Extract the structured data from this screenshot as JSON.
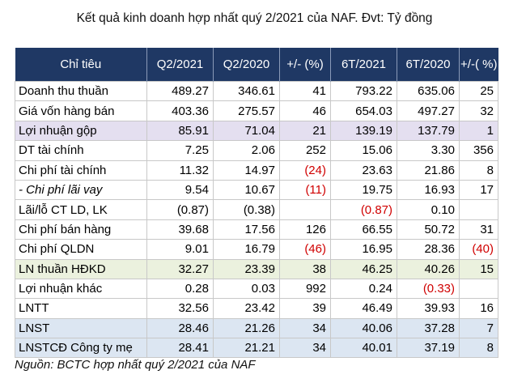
{
  "title": "Kết quả kinh doanh hợp nhất quý 2/2021 của NAF. Đvt: Tỷ đồng",
  "headers": [
    "Chỉ tiêu",
    "Q2/2021",
    "Q2/2020",
    "+/- (%)",
    "6T/2021",
    "6T/2020",
    "+/-( %)"
  ],
  "rows": [
    {
      "name": "Doanh thu thuần",
      "q2_2021": "489.27",
      "q2_2020": "346.61",
      "chg_q": "41",
      "h1_2021": "793.22",
      "h1_2020": "635.06",
      "chg_h": "25"
    },
    {
      "name": "Giá vốn hàng bán",
      "q2_2021": "403.36",
      "q2_2020": "275.57",
      "chg_q": "46",
      "h1_2021": "654.03",
      "h1_2020": "497.27",
      "chg_h": "32"
    },
    {
      "name": "Lợi nhuận gộp",
      "q2_2021": "85.91",
      "q2_2020": "71.04",
      "chg_q": "21",
      "h1_2021": "139.19",
      "h1_2020": "137.79",
      "chg_h": "1"
    },
    {
      "name": "DT tài chính",
      "q2_2021": "7.25",
      "q2_2020": "2.06",
      "chg_q": "252",
      "h1_2021": "15.06",
      "h1_2020": "3.30",
      "chg_h": "356"
    },
    {
      "name": "Chi phí tài chính",
      "q2_2021": "11.32",
      "q2_2020": "14.97",
      "chg_q": "(24)",
      "h1_2021": "23.63",
      "h1_2020": "21.86",
      "chg_h": "8"
    },
    {
      "name": "- Chi phí lãi vay",
      "q2_2021": "9.54",
      "q2_2020": "10.67",
      "chg_q": "(11)",
      "h1_2021": "19.75",
      "h1_2020": "16.93",
      "chg_h": "17"
    },
    {
      "name": "Lãi/lỗ CT LD, LK",
      "q2_2021": "(0.87)",
      "q2_2020": "(0.38)",
      "chg_q": "",
      "h1_2021": "(0.87)",
      "h1_2020": "0.10",
      "chg_h": ""
    },
    {
      "name": "Chi phí bán hàng",
      "q2_2021": "39.68",
      "q2_2020": "17.56",
      "chg_q": "126",
      "h1_2021": "66.55",
      "h1_2020": "50.72",
      "chg_h": "31"
    },
    {
      "name": "Chi phí QLDN",
      "q2_2021": "9.01",
      "q2_2020": "16.79",
      "chg_q": "(46)",
      "h1_2021": "16.95",
      "h1_2020": "28.36",
      "chg_h": "(40)"
    },
    {
      "name": "LN thuần HĐKD",
      "q2_2021": "32.27",
      "q2_2020": "23.39",
      "chg_q": "38",
      "h1_2021": "46.25",
      "h1_2020": "40.26",
      "chg_h": "15"
    },
    {
      "name": "Lợi nhuận khác",
      "q2_2021": "0.28",
      "q2_2020": "0.03",
      "chg_q": "992",
      "h1_2021": "0.24",
      "h1_2020": "(0.33)",
      "chg_h": ""
    },
    {
      "name": "LNTT",
      "q2_2021": "32.56",
      "q2_2020": "23.42",
      "chg_q": "39",
      "h1_2021": "46.49",
      "h1_2020": "39.93",
      "chg_h": "16"
    },
    {
      "name": "LNST",
      "q2_2021": "28.46",
      "q2_2020": "21.26",
      "chg_q": "34",
      "h1_2021": "40.06",
      "h1_2020": "37.28",
      "chg_h": "7"
    },
    {
      "name": "LNSTCĐ Công ty mẹ",
      "q2_2021": "28.41",
      "q2_2020": "21.21",
      "chg_q": "34",
      "h1_2021": "40.01",
      "h1_2020": "37.19",
      "chg_h": "8"
    }
  ],
  "source": "Nguồn: BCTC hợp nhất quý 2/2021 của NAF",
  "colors": {
    "header_bg": "#1f3864",
    "negative": "#d00000",
    "row_purple": "#e4dff0",
    "row_green": "#ebf1de",
    "row_blue": "#dce6f2"
  }
}
